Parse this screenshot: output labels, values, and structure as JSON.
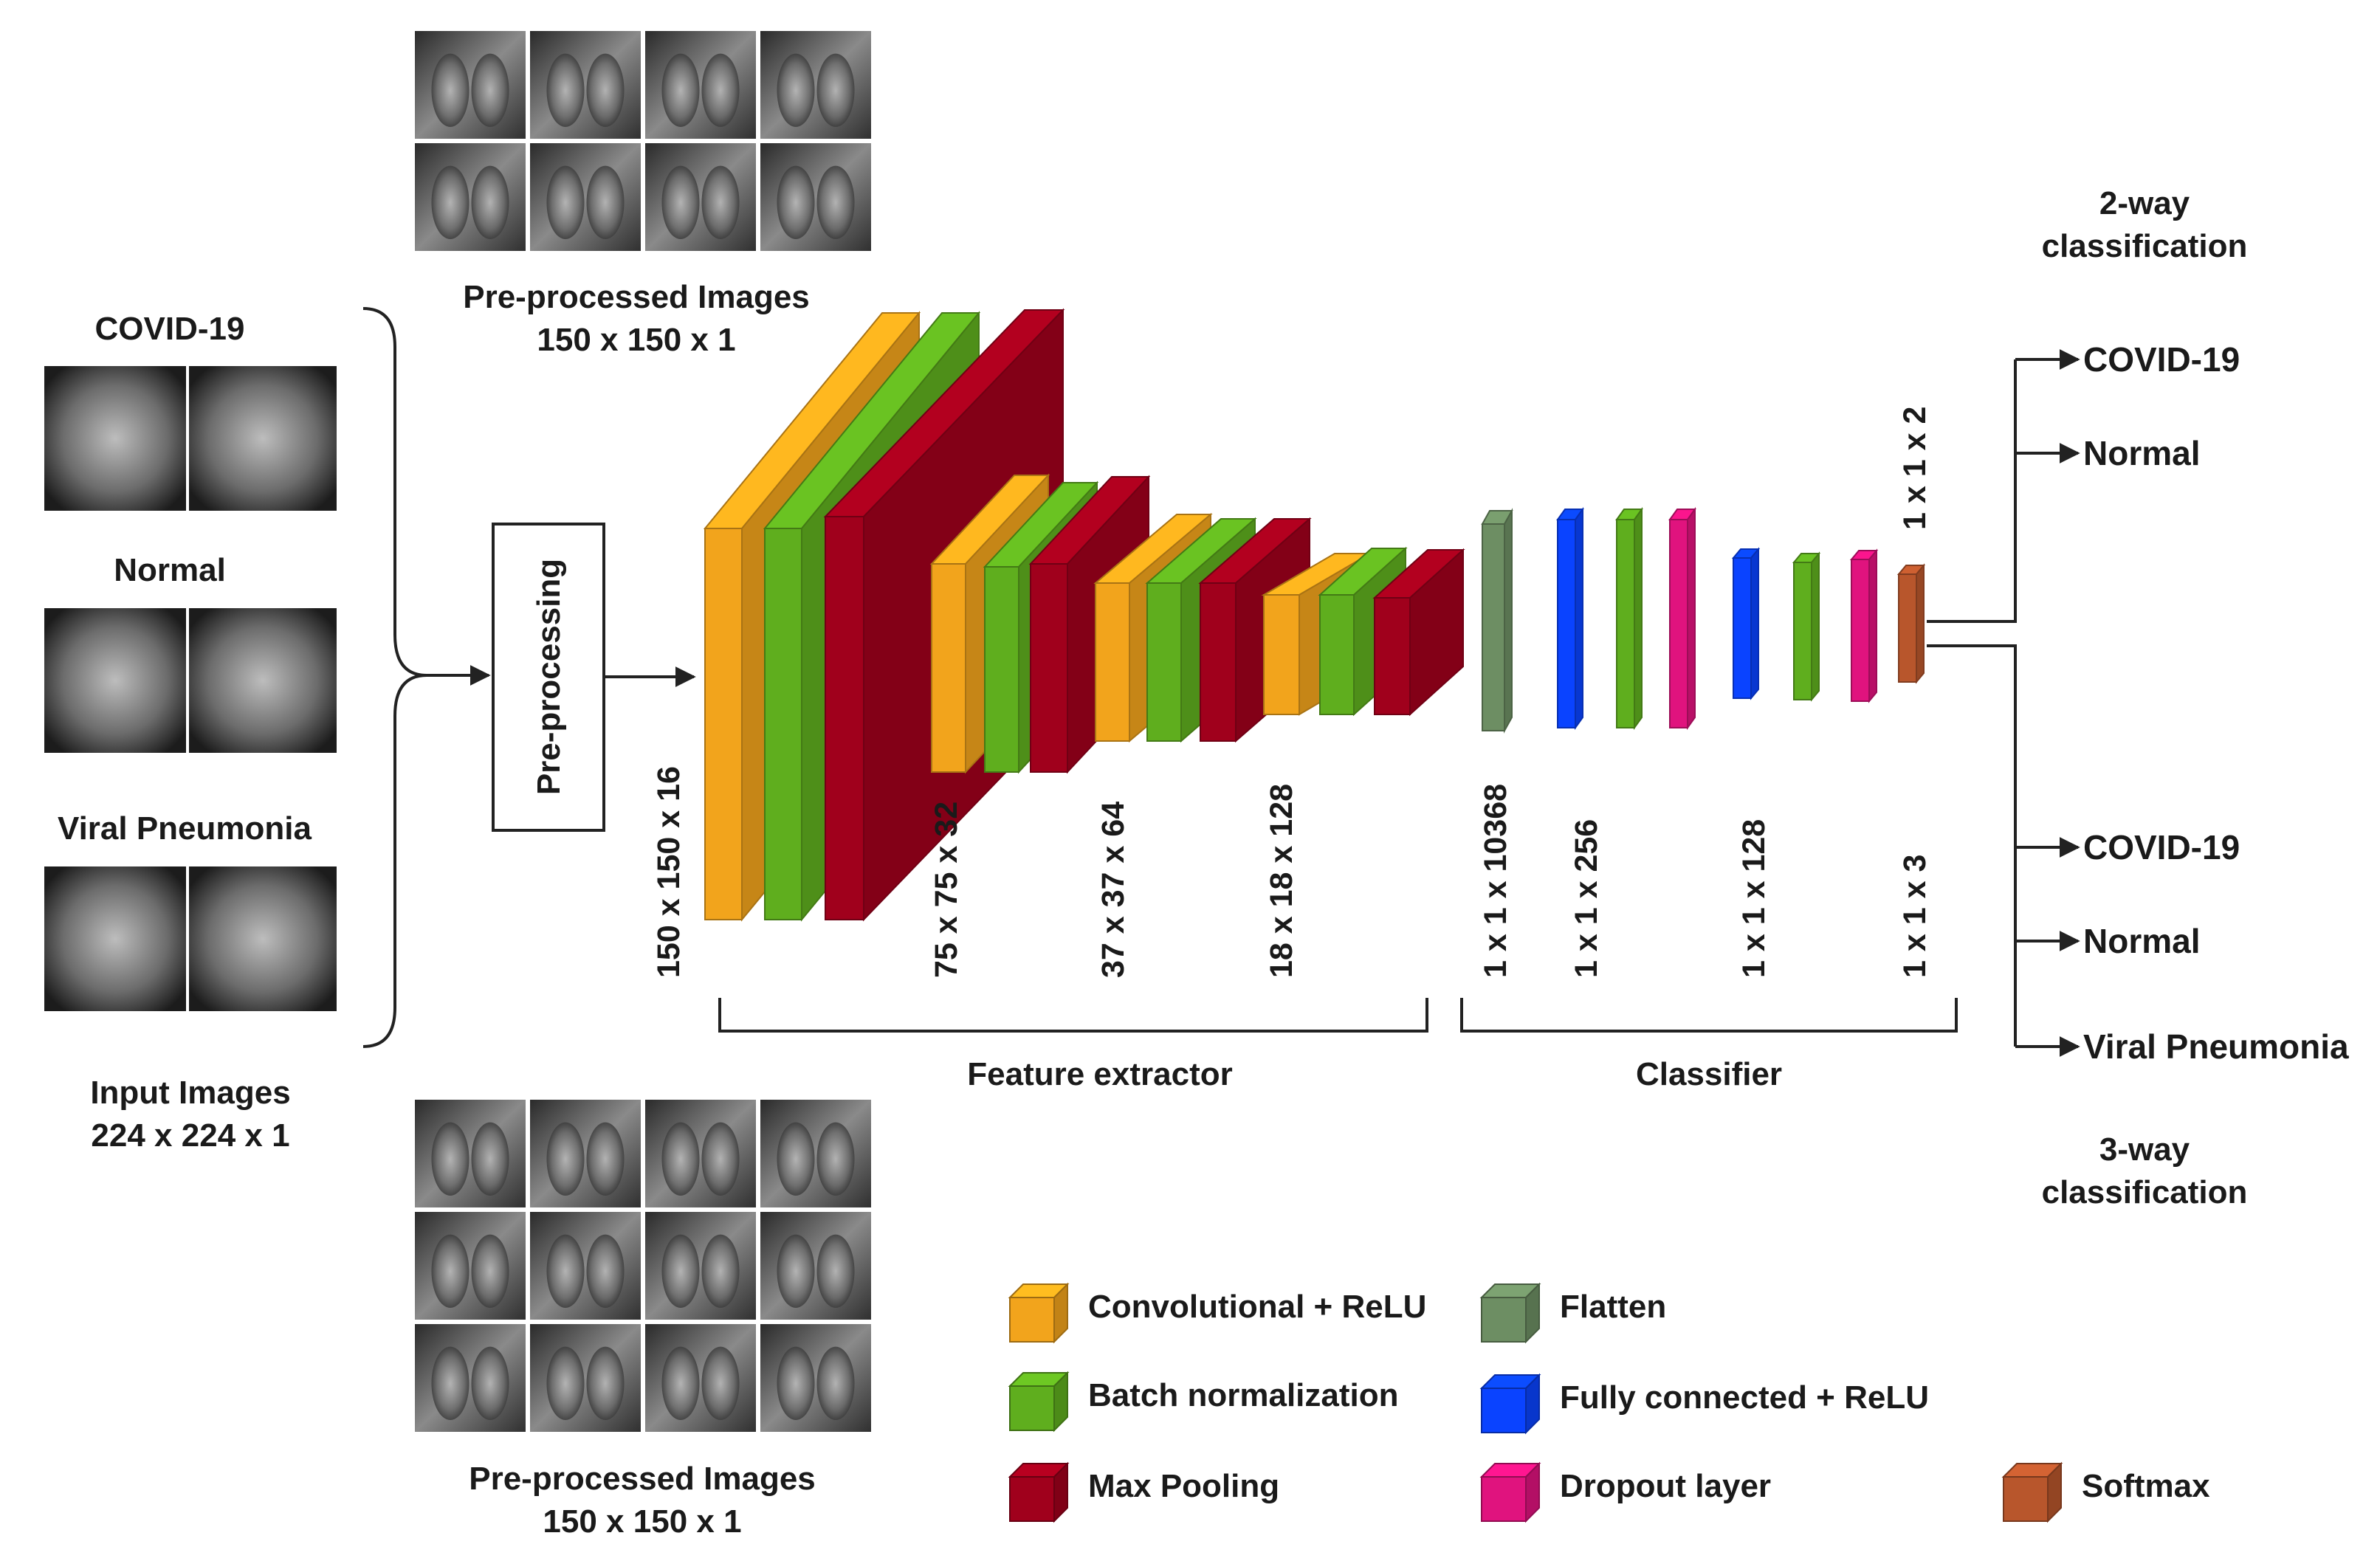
{
  "input_section": {
    "classes": [
      {
        "label": "COVID-19"
      },
      {
        "label": "Normal"
      },
      {
        "label": "Viral Pneumonia"
      }
    ],
    "caption_line1": "Input Images",
    "caption_line2": "224 x 224 x 1"
  },
  "preprocessing": {
    "label": "Pre-processing"
  },
  "preprocessed_top": {
    "line1": "Pre-processed Images",
    "line2": "150 x 150 x 1"
  },
  "preprocessed_bottom": {
    "line1": "Pre-processed Images",
    "line2": "150 x 150 x 1"
  },
  "feature_extractor": {
    "label": "Feature extractor",
    "blocks": [
      {
        "dims": "150 x 150 x 16"
      },
      {
        "dims": "75 x 75 x 32"
      },
      {
        "dims": "37 x 37 x 64"
      },
      {
        "dims": "18 x 18 x 128"
      }
    ]
  },
  "classifier": {
    "label": "Classifier",
    "dims": [
      "1 x 1 x 10368",
      "1 x 1 x 256",
      "1 x 1 x 128",
      "1 x 1 x 3"
    ],
    "top_dim": "1 x 1 x 2"
  },
  "two_way": {
    "title_line1": "2-way",
    "title_line2": "classification",
    "outputs": [
      "COVID-19",
      "Normal"
    ]
  },
  "three_way": {
    "title_line1": "3-way",
    "title_line2": "classification",
    "outputs": [
      "COVID-19",
      "Normal",
      "Viral Pneumonia"
    ]
  },
  "legend": [
    {
      "label": "Convolutional + ReLU",
      "color": "#f2a41c"
    },
    {
      "label": "Batch normalization",
      "color": "#5fae1e"
    },
    {
      "label": "Max Pooling",
      "color": "#a0001c"
    },
    {
      "label": "Flatten",
      "color": "#6d8e63"
    },
    {
      "label": "Fully connected + ReLU",
      "color": "#0a43ff"
    },
    {
      "label": "Dropout layer",
      "color": "#e0137e"
    },
    {
      "label": "Softmax",
      "color": "#b8562c"
    }
  ]
}
